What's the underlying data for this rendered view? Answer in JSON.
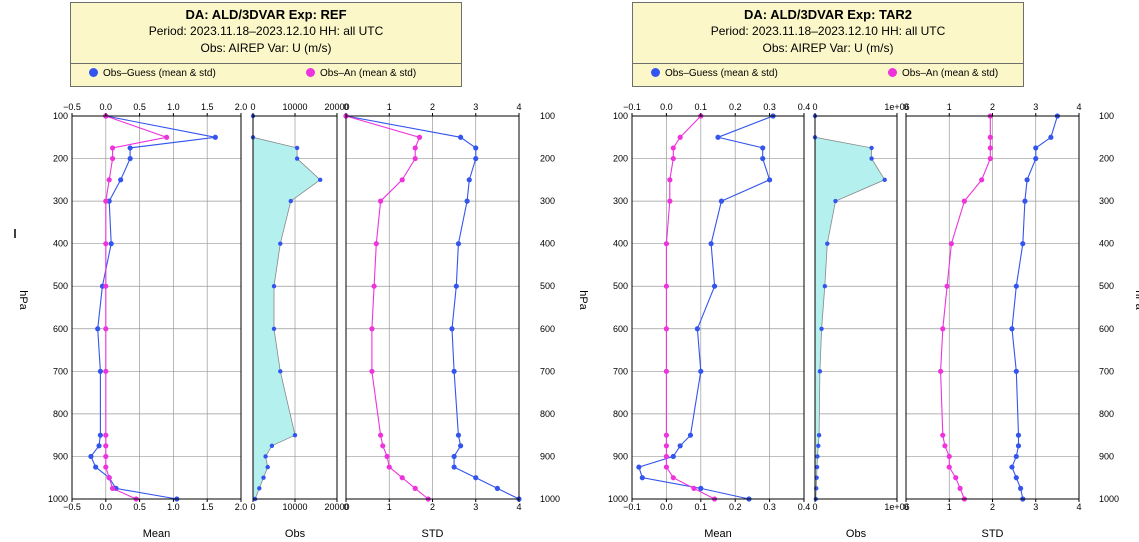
{
  "colors": {
    "guess": "#3355ee",
    "an": "#ee33dd",
    "obs_fill": "#b3f0ee",
    "header_bg": "#fbf7c9"
  },
  "legend": {
    "guess_label": "Obs–Guess (mean & std)",
    "an_label": "Obs–An (mean & std)"
  },
  "panels": [
    {
      "header": {
        "title": "DA: ALD/3DVAR    Exp: REF",
        "period": "Period: 2023.11.18–2023.12.10   HH: all UTC",
        "obs": "Obs: AIREP     Var: U (m/s)"
      },
      "left_ylabel": "hPa",
      "right_ylabel": "",
      "right_ylabel_cut": true,
      "left_ylabel_cut": true,
      "has_left_dash": true
    },
    {
      "header": {
        "title": "DA: ALD/3DVAR    Exp: TAR2",
        "period": "Period: 2023.11.18–2023.12.10   HH: all UTC",
        "obs": "Obs: AIREP     Var: U (m/s)"
      },
      "left_ylabel": "hPa",
      "right_ylabel": "hPa",
      "right_ylabel_cut": true,
      "left_ylabel_cut": false,
      "has_left_dash": false
    }
  ],
  "chart_data": [
    {
      "type": "line",
      "experiment": "REF",
      "y_levels_hpa": [
        100,
        150,
        175,
        200,
        250,
        300,
        400,
        500,
        600,
        700,
        850,
        875,
        900,
        925,
        950,
        975,
        1000
      ],
      "ylim": [
        100,
        1000
      ],
      "yticks": [
        "100",
        "200",
        "300",
        "400",
        "500",
        "600",
        "700",
        "800",
        "900",
        "1000"
      ],
      "subplots": [
        {
          "xlabel": "Mean",
          "xlim": [
            -0.5,
            2.0
          ],
          "xticks": [
            "−0.5",
            "0.0",
            "0.5",
            "1.0",
            "1.5",
            "2.0"
          ],
          "series": [
            {
              "name": "Obs–Guess",
              "values": [
                0.0,
                1.62,
                0.36,
                0.36,
                0.22,
                0.05,
                0.08,
                -0.05,
                -0.12,
                -0.08,
                -0.08,
                -0.1,
                -0.22,
                -0.15,
                0.05,
                0.15,
                1.05
              ]
            },
            {
              "name": "Obs–An",
              "values": [
                0.0,
                0.9,
                0.1,
                0.1,
                0.05,
                0.0,
                0.0,
                0.0,
                0.0,
                0.0,
                0.0,
                0.0,
                0.0,
                0.0,
                0.05,
                0.1,
                0.45
              ]
            }
          ]
        },
        {
          "xlabel": "Obs",
          "xlim": [
            0,
            20000
          ],
          "xticks": [
            "0",
            "10000",
            "20000"
          ],
          "series": [
            {
              "name": "Obs",
              "values": [
                0,
                0,
                10500,
                10500,
                16000,
                9000,
                6500,
                5000,
                5000,
                6500,
                10000,
                4500,
                3000,
                3500,
                2500,
                1500,
                500
              ]
            }
          ]
        },
        {
          "xlabel": "STD",
          "xlim": [
            0,
            4
          ],
          "xticks": [
            "0",
            "1",
            "2",
            "3",
            "4"
          ],
          "series": [
            {
              "name": "Obs–Guess",
              "values": [
                0.0,
                2.65,
                3.0,
                3.0,
                2.85,
                2.8,
                2.6,
                2.55,
                2.45,
                2.5,
                2.6,
                2.65,
                2.5,
                2.5,
                3.0,
                3.5,
                4.0
              ]
            },
            {
              "name": "Obs–An",
              "values": [
                0.0,
                1.7,
                1.6,
                1.6,
                1.3,
                0.8,
                0.7,
                0.65,
                0.6,
                0.6,
                0.8,
                0.85,
                0.95,
                1.0,
                1.3,
                1.6,
                1.9
              ]
            }
          ]
        }
      ]
    },
    {
      "type": "line",
      "experiment": "TAR2",
      "y_levels_hpa": [
        100,
        150,
        175,
        200,
        250,
        300,
        400,
        500,
        600,
        700,
        850,
        875,
        900,
        925,
        950,
        975,
        1000
      ],
      "ylim": [
        100,
        1000
      ],
      "yticks": [
        "100",
        "200",
        "300",
        "400",
        "500",
        "600",
        "700",
        "800",
        "900",
        "1000"
      ],
      "subplots": [
        {
          "xlabel": "Mean",
          "xlim": [
            -0.1,
            0.4
          ],
          "xticks": [
            "−0.1",
            "0.0",
            "0.1",
            "0.2",
            "0.3",
            "0.4"
          ],
          "series": [
            {
              "name": "Obs–Guess",
              "values": [
                0.31,
                0.15,
                0.28,
                0.28,
                0.3,
                0.16,
                0.13,
                0.14,
                0.09,
                0.1,
                0.07,
                0.04,
                0.02,
                -0.08,
                -0.07,
                0.1,
                0.24
              ]
            },
            {
              "name": "Obs–An",
              "values": [
                0.1,
                0.04,
                0.02,
                0.02,
                0.01,
                0.01,
                0.0,
                0.0,
                0.0,
                0.0,
                0.0,
                0.0,
                0.0,
                0.0,
                0.02,
                0.08,
                0.14
              ]
            }
          ]
        },
        {
          "xlabel": "Obs",
          "xlim": [
            0,
            1000000
          ],
          "xticks": [
            "0",
            "1e+06"
          ],
          "series": [
            {
              "name": "Obs",
              "values": [
                0,
                0,
                690000,
                690000,
                850000,
                250000,
                150000,
                120000,
                80000,
                60000,
                50000,
                40000,
                30000,
                25000,
                20000,
                15000,
                10000
              ]
            }
          ]
        },
        {
          "xlabel": "STD",
          "xlim": [
            0,
            4
          ],
          "xticks": [
            "0",
            "1",
            "2",
            "3",
            "4"
          ],
          "series": [
            {
              "name": "Obs–Guess",
              "values": [
                3.5,
                3.35,
                3.0,
                3.0,
                2.8,
                2.75,
                2.7,
                2.55,
                2.45,
                2.55,
                2.6,
                2.6,
                2.55,
                2.45,
                2.55,
                2.65,
                2.7
              ]
            },
            {
              "name": "Obs–An",
              "values": [
                1.95,
                1.95,
                1.95,
                1.95,
                1.75,
                1.35,
                1.05,
                0.95,
                0.85,
                0.8,
                0.85,
                0.9,
                1.0,
                1.0,
                1.15,
                1.25,
                1.35
              ]
            }
          ]
        }
      ]
    }
  ]
}
